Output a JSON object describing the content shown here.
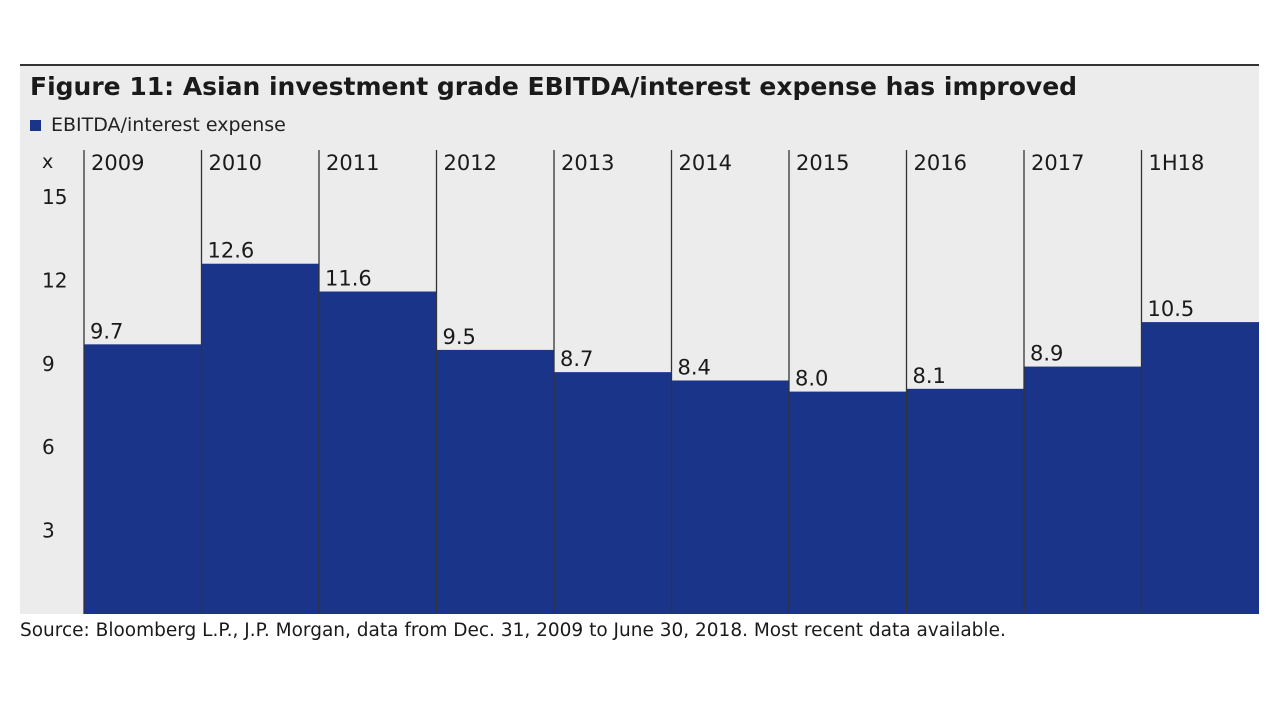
{
  "colors": {
    "bar": "#1a3489",
    "background": "#ececec",
    "divider": "#333333",
    "text": "#1a1a1a"
  },
  "chart_data": {
    "type": "bar",
    "title": "Figure 11: Asian investment grade EBITDA/interest expense has improved",
    "ylabel": "x",
    "legend": "EBITDA/interest expense",
    "legend_position": "top-left",
    "categories": [
      "2009",
      "2010",
      "2011",
      "2012",
      "2013",
      "2014",
      "2015",
      "2016",
      "2017",
      "1H18"
    ],
    "values": [
      9.7,
      12.6,
      11.6,
      9.5,
      8.7,
      8.4,
      8.0,
      8.1,
      8.9,
      10.5
    ],
    "value_labels": [
      "9.7",
      "12.6",
      "11.6",
      "9.5",
      "8.7",
      "8.4",
      "8.0",
      "8.1",
      "8.9",
      "10.5"
    ],
    "yticks": [
      3,
      6,
      9,
      12,
      15
    ],
    "ylim": [
      0,
      16
    ],
    "grid": false
  },
  "source": "Source: Bloomberg L.P., J.P. Morgan, data from Dec. 31, 2009 to June 30, 2018. Most recent data available."
}
